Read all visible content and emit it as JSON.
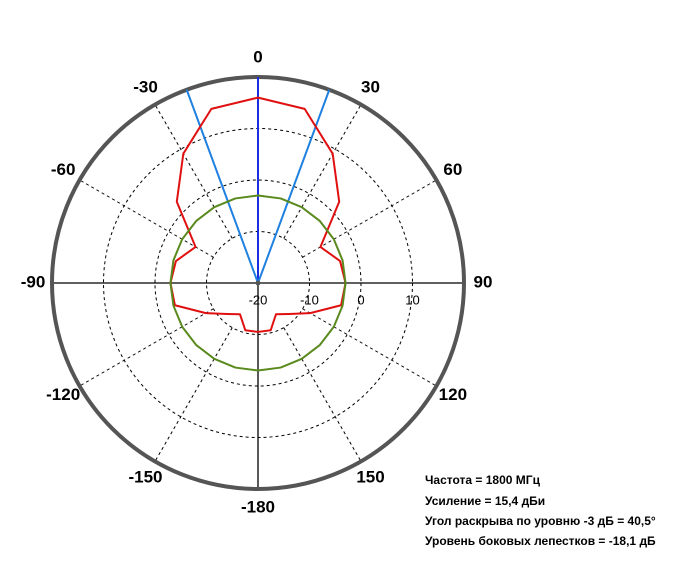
{
  "chart_data": {
    "type": "polar",
    "theta": [
      -180,
      -165,
      -150,
      -135,
      -120,
      -105,
      -90,
      -75,
      -60,
      -45,
      -30,
      -15,
      0,
      15,
      30,
      45,
      60,
      75,
      90,
      105,
      120,
      135,
      150,
      165,
      180
    ],
    "series": [
      {
        "color": "#e01010",
        "values": [
          -10.5,
          -10.5,
          -13,
          -11.5,
          -8.3,
          -3.3,
          -3,
          -3.5,
          -6,
          2.3,
          9,
          15,
          16,
          15,
          9,
          2.3,
          -6,
          -3.5,
          -3,
          -3.3,
          -8.3,
          -11.5,
          -13,
          -10.5,
          -10.5
        ]
      },
      {
        "color": "#5a8a1e",
        "values": [
          -3,
          -3,
          -3,
          -3,
          -3,
          -3,
          -3,
          -3,
          -3,
          -3,
          -3,
          -3,
          -3,
          -3,
          -3,
          -3,
          -3,
          -3,
          -3,
          -3,
          -3,
          -3,
          -3,
          -3,
          -3
        ]
      }
    ],
    "beam_lines": [
      -20.25,
      20.25
    ],
    "beam_color": "#1e80e0",
    "rlim": [
      -20,
      20
    ],
    "rticks": [
      -20,
      -10,
      0,
      10
    ],
    "thetaticks": [
      0,
      30,
      60,
      90,
      120,
      150,
      -180,
      -150,
      -120,
      -90,
      -60,
      -30
    ],
    "annotations": [
      "Частота = 1800 МГц",
      "Усиление = 15,4 дБи",
      "Угол раскрыва по уровню -3 дБ = 40,5°",
      "Уровень боковых лепестков = -18,1 дБ"
    ]
  }
}
